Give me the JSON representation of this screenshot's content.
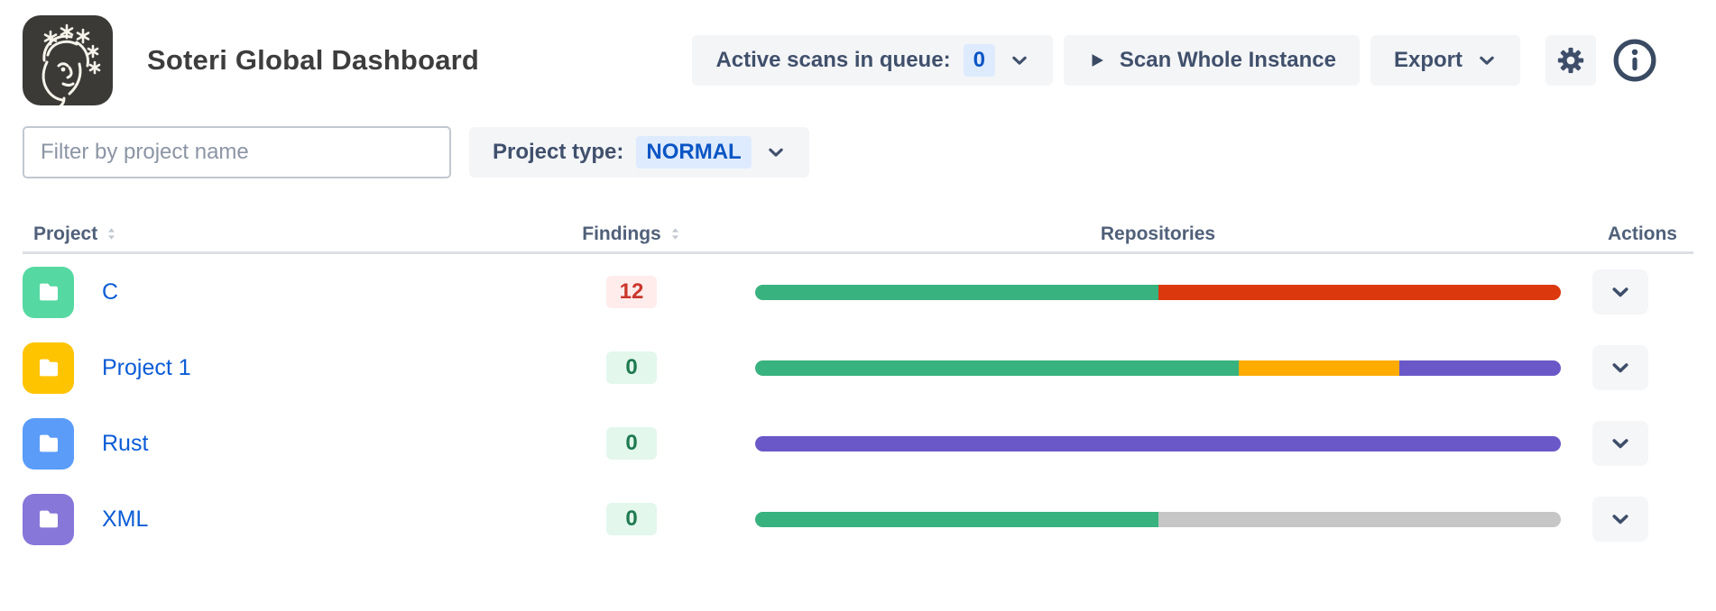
{
  "header": {
    "title": "Soteri Global Dashboard",
    "queue_button": {
      "label": "Active scans in queue:",
      "count": "0"
    },
    "scan_button": "Scan Whole Instance",
    "export_button": "Export"
  },
  "filters": {
    "search_placeholder": "Filter by project name",
    "project_type_label": "Project type:",
    "project_type_value": "NORMAL"
  },
  "table": {
    "columns": [
      "Project",
      "Findings",
      "Repositories",
      "Actions"
    ],
    "rows": [
      {
        "name": "C",
        "findings": "12",
        "findings_status": "error",
        "avatar_color": "#56d8a2",
        "segments": [
          {
            "status": "ok",
            "color": "#38b27e",
            "pct": 50
          },
          {
            "status": "failed",
            "color": "#dc380d",
            "pct": 50
          }
        ]
      },
      {
        "name": "Project 1",
        "findings": "0",
        "findings_status": "ok",
        "avatar_color": "#ffc400",
        "segments": [
          {
            "status": "ok",
            "color": "#38b27e",
            "pct": 60
          },
          {
            "status": "warning",
            "color": "#ffab00",
            "pct": 20
          },
          {
            "status": "in-progress",
            "color": "#6a58c8",
            "pct": 20
          }
        ]
      },
      {
        "name": "Rust",
        "findings": "0",
        "findings_status": "ok",
        "avatar_color": "#5a9cf8",
        "segments": [
          {
            "status": "in-progress",
            "color": "#6a58c8",
            "pct": 100
          }
        ]
      },
      {
        "name": "XML",
        "findings": "0",
        "findings_status": "ok",
        "avatar_color": "#8777d9",
        "segments": [
          {
            "status": "ok",
            "color": "#38b27e",
            "pct": 50
          },
          {
            "status": "not-scanned",
            "color": "#c6c6c6",
            "pct": 50
          }
        ]
      }
    ]
  },
  "colors": {
    "accent_blue": "#0b5cd6",
    "pill_bg": "#deebff",
    "button_bg": "#f4f5f7",
    "findings_error_bg": "#ffeceb",
    "findings_error_text": "#c9372c",
    "findings_ok_bg": "#e3f7ec",
    "findings_ok_text": "#1f7a50",
    "bar_green": "#38b27e",
    "bar_red": "#dc380d",
    "bar_orange": "#ffab00",
    "bar_purple": "#6a58c8",
    "bar_gray": "#c6c6c6"
  },
  "icons": [
    "soteri-logo",
    "chevron-down-icon",
    "play-icon",
    "gear-icon",
    "info-icon",
    "sort-icon",
    "folder-icon"
  ]
}
